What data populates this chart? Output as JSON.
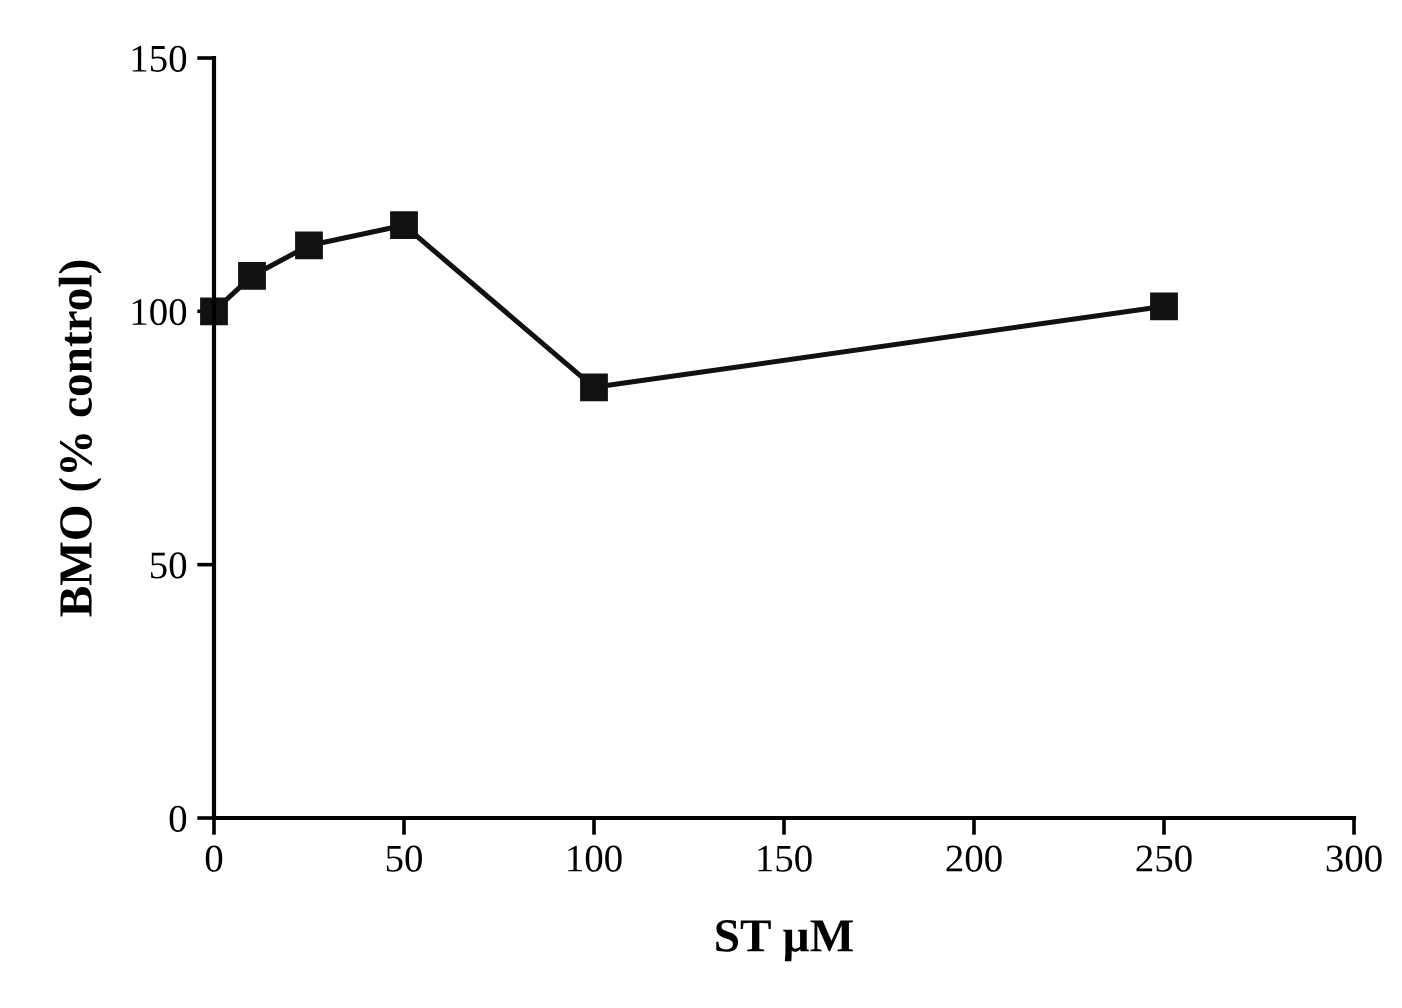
{
  "chart_data": {
    "type": "line",
    "xlabel": "ST µM",
    "ylabel": "BMO (% control)",
    "x": [
      0,
      10,
      25,
      50,
      100,
      250
    ],
    "series": [
      {
        "color": "#111111",
        "values": [
          100,
          107,
          113,
          117,
          85,
          101
        ]
      }
    ],
    "xlim": [
      0,
      300
    ],
    "ylim": [
      0,
      150
    ],
    "xticks": [
      0,
      50,
      100,
      150,
      200,
      250,
      300
    ],
    "yticks": [
      0,
      50,
      100,
      150
    ],
    "marker": "square",
    "line_style": "solid",
    "grid": false,
    "legend": false
  }
}
